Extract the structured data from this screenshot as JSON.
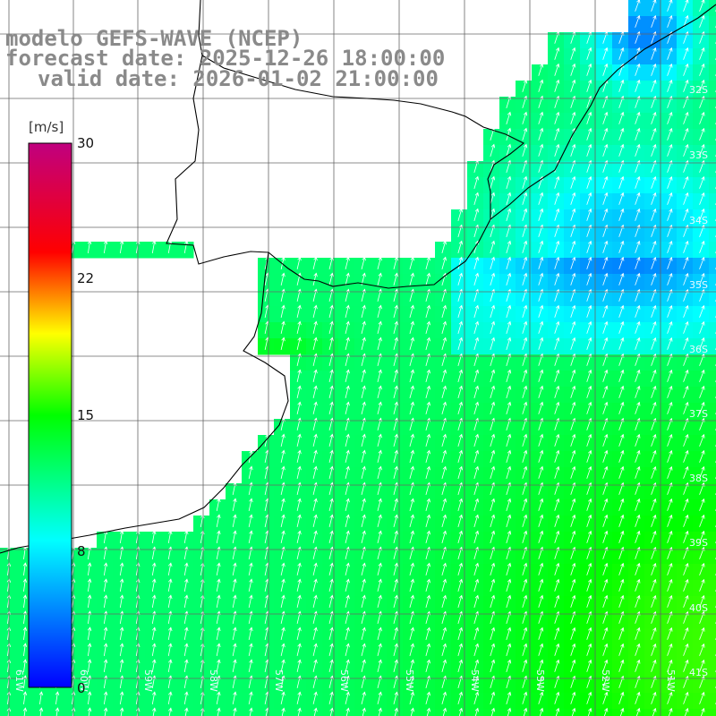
{
  "title": {
    "line1": "modelo GEFS-WAVE (NCEP)",
    "line2": "forecast date: 2025-12-26 18:00:00",
    "line3": "valid date: 2026-01-02 21:00:00"
  },
  "colorbar": {
    "unit": "[m/s]",
    "ticks": [
      "30",
      "22",
      "15",
      "8",
      "0"
    ],
    "tick_values": [
      30,
      22,
      15,
      8,
      0
    ],
    "colors": [
      "#0000ff",
      "#00ffff",
      "#00ff00",
      "#ffff00",
      "#ff0000",
      "#c0007f"
    ]
  },
  "map": {
    "lat_labels": [
      "32S",
      "33S",
      "34S",
      "35S",
      "36S",
      "37S",
      "38S",
      "39S",
      "40S",
      "41S"
    ],
    "lon_labels": [
      "61W",
      "60W",
      "59W",
      "58W",
      "57W",
      "56W",
      "55W",
      "54W",
      "53W",
      "52W",
      "51W"
    ],
    "field": "wind speed (m/s) with direction arrows"
  },
  "colors": {
    "title": "#8a8a8a",
    "grid": "#555555",
    "coast": "#000000",
    "land": "#ffffff"
  }
}
